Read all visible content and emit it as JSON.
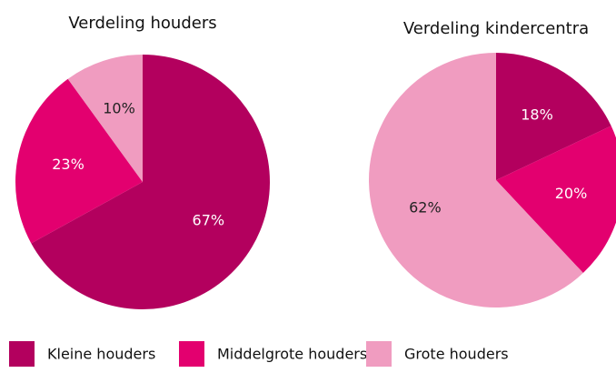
{
  "legend": [
    {
      "name": "Kleine houders",
      "color": "#b3005e"
    },
    {
      "name": "Middelgrote houders",
      "color": "#e3006f"
    },
    {
      "name": "Grote houders",
      "color": "#f09cc0"
    }
  ],
  "chart_data": [
    {
      "type": "pie",
      "title": "Verdeling houders",
      "values": [
        67,
        23,
        10
      ],
      "value_labels": [
        "67%",
        "23%",
        "10%"
      ]
    },
    {
      "type": "pie",
      "title": "Verdeling kindercentra",
      "values": [
        18,
        20,
        62
      ],
      "value_labels": [
        "18%",
        "20%",
        "62%"
      ]
    }
  ]
}
